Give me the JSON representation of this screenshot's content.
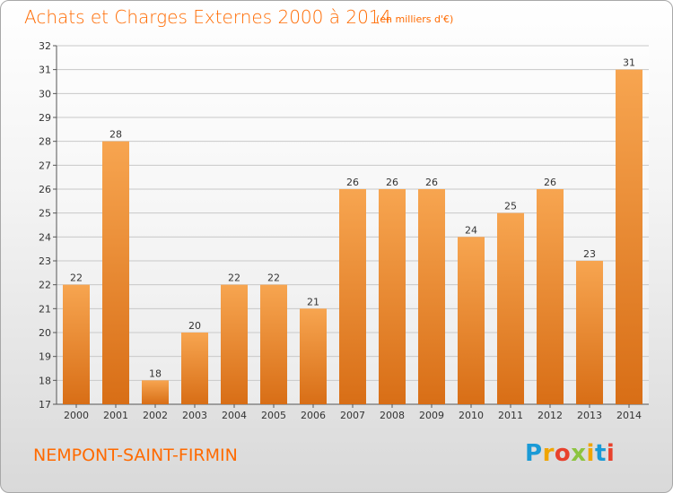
{
  "header": {
    "title": "Achats et Charges Externes 2000 à 2014",
    "subtitle": "(en milliers d'€)"
  },
  "footer": {
    "place": "NEMPONT-SAINT-FIRMIN",
    "logo": "Proxiti"
  },
  "colors": {
    "accent": "#ff6a00",
    "bar_light": "#f7a550",
    "bar_dark": "#d86e16",
    "logo_p": "#1a9ad6",
    "logo_r": "#f0a500",
    "logo_o": "#e8412c",
    "logo_x": "#8cc43f",
    "logo_i": "#f0a500",
    "logo_t": "#1a9ad6",
    "logo_i2": "#e8412c"
  },
  "chart_data": {
    "type": "bar",
    "title": "Achats et Charges Externes 2000 à 2014",
    "subtitle": "(en milliers d'€)",
    "categories": [
      "2000",
      "2001",
      "2002",
      "2003",
      "2004",
      "2005",
      "2006",
      "2007",
      "2008",
      "2009",
      "2010",
      "2011",
      "2012",
      "2013",
      "2014"
    ],
    "values": [
      22,
      28,
      18,
      20,
      22,
      22,
      21,
      26,
      26,
      26,
      24,
      25,
      26,
      23,
      31
    ],
    "ylim": [
      17,
      32
    ],
    "yticks": [
      17,
      18,
      19,
      20,
      21,
      22,
      23,
      24,
      25,
      26,
      27,
      28,
      29,
      30,
      31,
      32
    ],
    "grid": true,
    "xlabel": "",
    "ylabel": ""
  }
}
